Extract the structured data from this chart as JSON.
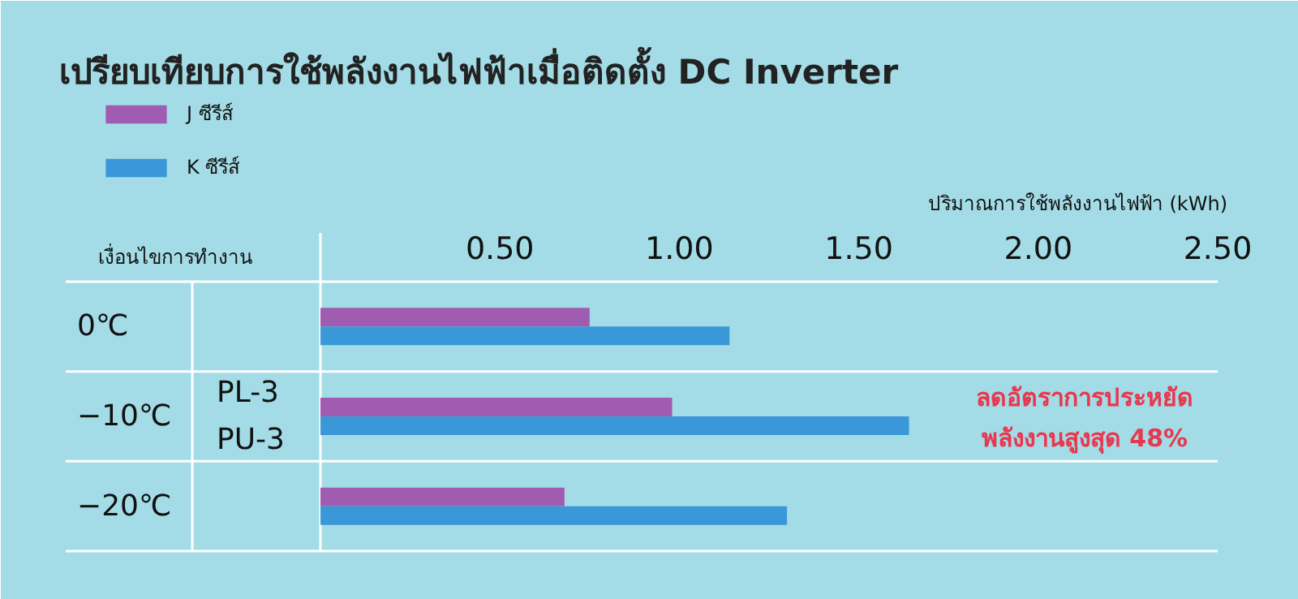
{
  "chart_data": {
    "type": "bar",
    "orientation": "horizontal",
    "title": "เปรียบเทียบการใช้พลังงานไฟฟ้าเมื่อติดตั้ง DC Inverter",
    "xlabel": "ปริมาณการใช้พลังงานไฟฟ้า (kWh)",
    "categories": [
      "0℃",
      "−10℃",
      "−20℃"
    ],
    "series": [
      {
        "name": "J ซีรีส์",
        "color": "#a05cb0",
        "values": [
          0.75,
          0.98,
          0.68
        ]
      },
      {
        "name": "K ซีรีส์",
        "color": "#3a98d8",
        "values": [
          1.14,
          1.64,
          1.3
        ]
      }
    ],
    "xlim": [
      0,
      2.5
    ],
    "xticks": [
      {
        "value": 0.5,
        "label": "0.50"
      },
      {
        "value": 1.0,
        "label": "1.00"
      },
      {
        "value": 1.5,
        "label": "1.50"
      },
      {
        "value": 2.0,
        "label": "2.00"
      },
      {
        "value": 2.5,
        "label": "2.50"
      }
    ],
    "grid": "y",
    "legend": "top left",
    "annotations": [
      "เงื่อนไขการทำงาน",
      "PL-3\nPU-3",
      "ลดอัตราการประหยัด\nพลังงานสูงสุด 48%"
    ]
  }
}
